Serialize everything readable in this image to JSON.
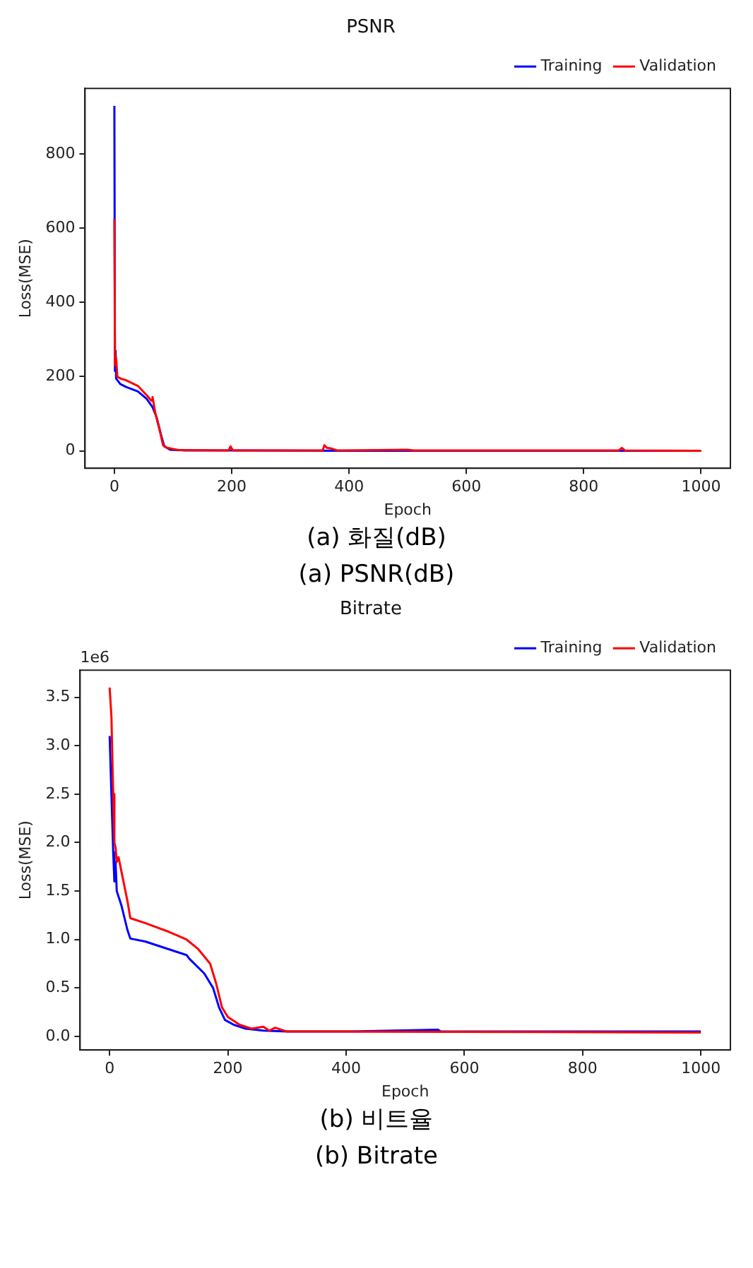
{
  "chart_data": [
    {
      "type": "line",
      "title": "PSNR",
      "xlabel": "Epoch",
      "ylabel": "Loss(MSE)",
      "xlim": [
        -50,
        1050
      ],
      "xticks": [
        0,
        200,
        400,
        600,
        800,
        1000
      ],
      "ylim": [
        -47,
        977
      ],
      "yticks": [
        0,
        200,
        400,
        600,
        800
      ],
      "legend": "top right",
      "grid": false,
      "marker": "none",
      "line_style": "solid",
      "annotations": [
        "(a)  화질(dB)",
        "(a)  PSNR(dB)"
      ],
      "series": [
        {
          "name": "Training",
          "color": "#0000ff",
          "x": [
            0,
            1,
            2,
            3,
            10,
            20,
            40,
            55,
            65,
            72,
            80,
            85,
            95,
            120,
            200,
            400,
            600,
            800,
            1000
          ],
          "values": [
            930,
            215,
            270,
            195,
            180,
            172,
            160,
            140,
            118,
            90,
            40,
            12,
            3,
            1,
            1,
            0,
            0,
            0,
            0
          ]
        },
        {
          "name": "Validation",
          "color": "#ff0000",
          "x": [
            0,
            1,
            3,
            5,
            10,
            20,
            40,
            55,
            63,
            65,
            70,
            78,
            83,
            90,
            100,
            110,
            195,
            198,
            202,
            355,
            358,
            362,
            370,
            380,
            500,
            510,
            860,
            865,
            870,
            1000
          ],
          "values": [
            625,
            230,
            250,
            200,
            195,
            190,
            175,
            150,
            135,
            145,
            100,
            50,
            15,
            8,
            5,
            2,
            1,
            12,
            1,
            1,
            15,
            8,
            6,
            1,
            3,
            1,
            1,
            8,
            1,
            0
          ]
        }
      ]
    },
    {
      "type": "line",
      "title": "Bitrate",
      "xlabel": "Epoch",
      "ylabel": "Loss(MSE)",
      "xlim": [
        -50,
        1050
      ],
      "xticks": [
        0,
        200,
        400,
        600,
        800,
        1000
      ],
      "ylim": [
        -0.14,
        3.78
      ],
      "yticks": [
        {
          "value": 0,
          "label": "0.0"
        },
        0.5,
        {
          "value": 1,
          "label": "1.0"
        },
        1.5,
        {
          "value": 2,
          "label": "2.0"
        },
        2.5,
        {
          "value": 3,
          "label": "3.0"
        },
        3.5
      ],
      "legend": "top right",
      "grid": false,
      "marker": "none",
      "line_style": "solid",
      "annotations": [
        {
          "text": "1e6"
        },
        "(b)  비트율",
        "(b)  Bitrate"
      ],
      "series": [
        {
          "name": "Training",
          "color": "#0000ff",
          "x": [
            0,
            3,
            6,
            8,
            10,
            12,
            20,
            30,
            35,
            60,
            100,
            130,
            135,
            160,
            175,
            185,
            195,
            210,
            230,
            260,
            300,
            400,
            555,
            560,
            1000
          ],
          "values": [
            3.1,
            2.5,
            1.9,
            1.6,
            1.8,
            1.5,
            1.35,
            1.1,
            1.01,
            0.98,
            0.9,
            0.84,
            0.8,
            0.65,
            0.5,
            0.3,
            0.17,
            0.12,
            0.08,
            0.06,
            0.05,
            0.05,
            0.07,
            0.05,
            0.05
          ]
        },
        {
          "name": "Validation",
          "color": "#ff0000",
          "x": [
            0,
            3,
            6,
            8,
            10,
            12,
            15,
            20,
            30,
            35,
            60,
            100,
            130,
            150,
            170,
            180,
            190,
            200,
            220,
            240,
            260,
            270,
            280,
            300,
            400,
            1000
          ],
          "values": [
            3.6,
            3.3,
            2.5,
            2.0,
            1.95,
            1.8,
            1.85,
            1.7,
            1.4,
            1.22,
            1.17,
            1.08,
            1.0,
            0.9,
            0.75,
            0.55,
            0.3,
            0.2,
            0.12,
            0.08,
            0.1,
            0.06,
            0.09,
            0.05,
            0.05,
            0.04
          ]
        }
      ]
    }
  ]
}
